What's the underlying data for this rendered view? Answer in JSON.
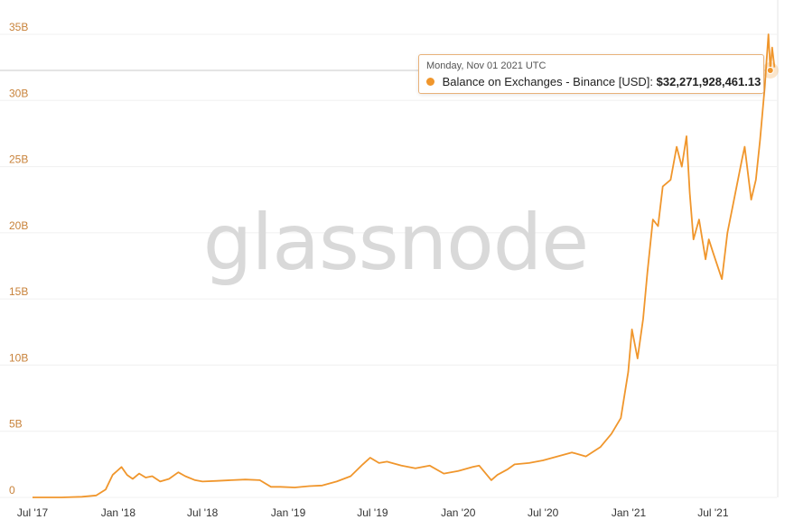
{
  "watermark": "glassnode",
  "colors": {
    "series": "#f0962c",
    "grid": "#f0f0f0",
    "ytick": "#c8823a",
    "crosshair": "#c8c8c8"
  },
  "tooltip": {
    "date": "Monday, Nov 01 2021 UTC",
    "series_label": "Balance on Exchanges - Binance [USD]:",
    "value": "$32,271,928,461.13"
  },
  "chart_data": {
    "type": "line",
    "title": "",
    "xlabel": "",
    "ylabel": "",
    "ylim": [
      0,
      35000000000
    ],
    "grid": true,
    "legend": "none",
    "y_ticks": [
      {
        "value": 0,
        "label": "0"
      },
      {
        "value": 5000000000,
        "label": "5B"
      },
      {
        "value": 10000000000,
        "label": "10B"
      },
      {
        "value": 15000000000,
        "label": "15B"
      },
      {
        "value": 20000000000,
        "label": "20B"
      },
      {
        "value": 25000000000,
        "label": "25B"
      },
      {
        "value": 30000000000,
        "label": "30B"
      },
      {
        "value": 35000000000,
        "label": "35B"
      }
    ],
    "x_ticks": [
      {
        "date": "2017-07-01",
        "label": "Jul '17"
      },
      {
        "date": "2018-01-01",
        "label": "Jan '18"
      },
      {
        "date": "2018-07-01",
        "label": "Jul '18"
      },
      {
        "date": "2019-01-01",
        "label": "Jan '19"
      },
      {
        "date": "2019-07-01",
        "label": "Jul '19"
      },
      {
        "date": "2020-01-01",
        "label": "Jan '20"
      },
      {
        "date": "2020-07-01",
        "label": "Jul '20"
      },
      {
        "date": "2021-01-01",
        "label": "Jan '21"
      },
      {
        "date": "2021-07-01",
        "label": "Jul '21"
      }
    ],
    "xlim": [
      "2017-07-01",
      "2021-11-15"
    ],
    "highlight": {
      "date": "2021-11-01",
      "y": 32271928461.13
    },
    "series": [
      {
        "x": [
          "2017-07-01",
          "2017-09-01",
          "2017-10-15",
          "2017-11-15",
          "2017-12-05",
          "2017-12-20",
          "2018-01-08",
          "2018-01-20",
          "2018-02-01",
          "2018-02-15",
          "2018-03-01",
          "2018-03-15",
          "2018-04-01",
          "2018-04-20",
          "2018-05-10",
          "2018-05-25",
          "2018-06-15",
          "2018-07-01",
          "2018-08-01",
          "2018-09-01",
          "2018-10-01",
          "2018-11-01",
          "2018-11-25",
          "2018-12-15",
          "2019-01-15",
          "2019-02-15",
          "2019-03-15",
          "2019-04-15",
          "2019-05-15",
          "2019-06-10",
          "2019-06-26",
          "2019-07-15",
          "2019-08-01",
          "2019-09-01",
          "2019-10-01",
          "2019-11-01",
          "2019-12-01",
          "2020-01-01",
          "2020-02-01",
          "2020-02-15",
          "2020-03-12",
          "2020-03-25",
          "2020-04-15",
          "2020-05-01",
          "2020-06-01",
          "2020-07-01",
          "2020-08-01",
          "2020-09-01",
          "2020-10-01",
          "2020-11-01",
          "2020-11-25",
          "2020-12-15",
          "2020-12-31",
          "2021-01-08",
          "2021-01-20",
          "2021-02-01",
          "2021-02-10",
          "2021-02-22",
          "2021-03-05",
          "2021-03-15",
          "2021-04-01",
          "2021-04-14",
          "2021-04-25",
          "2021-05-05",
          "2021-05-12",
          "2021-05-20",
          "2021-06-01",
          "2021-06-15",
          "2021-06-22",
          "2021-07-01",
          "2021-07-20",
          "2021-08-01",
          "2021-08-15",
          "2021-09-01",
          "2021-09-07",
          "2021-09-21",
          "2021-10-01",
          "2021-10-10",
          "2021-10-20",
          "2021-10-28",
          "2021-11-01",
          "2021-11-05",
          "2021-11-10"
        ],
        "y": [
          0,
          0,
          50000000,
          150000000,
          600000000,
          1700000000,
          2300000000,
          1700000000,
          1400000000,
          1800000000,
          1500000000,
          1600000000,
          1200000000,
          1400000000,
          1900000000,
          1600000000,
          1300000000,
          1200000000,
          1250000000,
          1300000000,
          1350000000,
          1300000000,
          800000000,
          800000000,
          750000000,
          850000000,
          900000000,
          1200000000,
          1600000000,
          2500000000,
          3000000000,
          2600000000,
          2700000000,
          2400000000,
          2200000000,
          2400000000,
          1800000000,
          2000000000,
          2300000000,
          2400000000,
          1300000000,
          1700000000,
          2100000000,
          2500000000,
          2600000000,
          2800000000,
          3100000000,
          3400000000,
          3100000000,
          3800000000,
          4800000000,
          6000000000,
          9500000000,
          12700000000,
          10500000000,
          13500000000,
          17000000000,
          21000000000,
          20500000000,
          23500000000,
          24000000000,
          26500000000,
          25000000000,
          27300000000,
          23000000000,
          19500000000,
          21000000000,
          18000000000,
          19500000000,
          18500000000,
          16500000000,
          20000000000,
          22500000000,
          25500000000,
          26500000000,
          22500000000,
          24000000000,
          27000000000,
          31000000000,
          35000000000,
          32300000000,
          34000000000,
          32500000000
        ]
      }
    ]
  }
}
